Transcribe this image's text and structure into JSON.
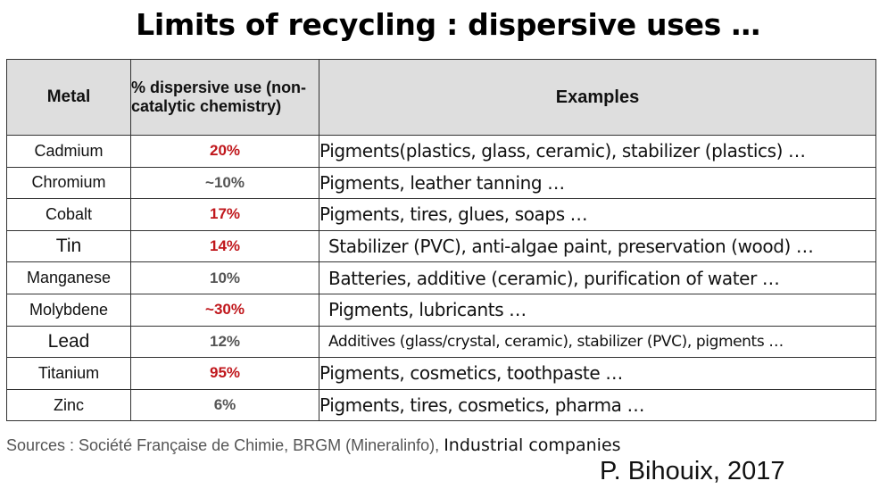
{
  "title": "Limits of recycling : dispersive uses …",
  "table": {
    "headers": {
      "metal": "Metal",
      "percent": "% dispersive use (non-catalytic chemistry)",
      "examples": "Examples"
    },
    "rows": [
      {
        "metal": "Cadmium",
        "percent": "20%",
        "highlight": true,
        "examples": "Pigments(plastics, glass, ceramic), stabilizer (plastics) …"
      },
      {
        "metal": "Chromium",
        "percent": "~10%",
        "highlight": false,
        "examples": "Pigments, leather tanning …"
      },
      {
        "metal": "Cobalt",
        "percent": "17%",
        "highlight": true,
        "examples": "Pigments, tires, glues, soaps …"
      },
      {
        "metal": "Tin",
        "percent": "14%",
        "highlight": true,
        "examples": "Stabilizer (PVC), anti-algae paint, preservation (wood) …"
      },
      {
        "metal": "Manganese",
        "percent": "10%",
        "highlight": false,
        "examples": "Batteries, additive (ceramic), purification of water …"
      },
      {
        "metal": "Molybdene",
        "percent": "~30%",
        "highlight": true,
        "examples": "Pigments, lubricants …"
      },
      {
        "metal": "Lead",
        "percent": "12%",
        "highlight": false,
        "examples": "Additives (glass/crystal, ceramic), stabilizer (PVC), pigments …"
      },
      {
        "metal": "Titanium",
        "percent": "95%",
        "highlight": true,
        "examples": "Pigments, cosmetics, toothpaste …"
      },
      {
        "metal": "Zinc",
        "percent": "6%",
        "highlight": false,
        "examples": "Pigments, tires, cosmetics, pharma …"
      }
    ]
  },
  "sources": {
    "label": "Sources : Société Française de Chimie, BRGM (Mineralinfo),",
    "extra": "Industrial companies"
  },
  "author": "P. Bihouix, 2017",
  "colors": {
    "highlight": "#c0171c",
    "normal": "#555555",
    "header_bg": "#dedede"
  }
}
